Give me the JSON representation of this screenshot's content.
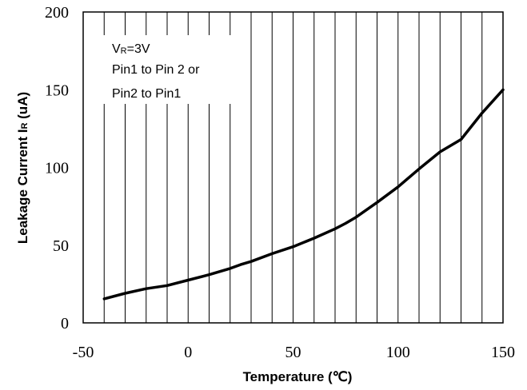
{
  "chart_data": {
    "type": "line",
    "xlabel_main": "Temperature (",
    "xlabel_unit": "℃",
    "xlabel_end": ")",
    "ylabel_main": "Leakage Current I",
    "ylabel_sub": "R",
    "ylabel_unit": " (uA)",
    "xlim": [
      -50,
      150
    ],
    "ylim": [
      0,
      200
    ],
    "x_ticks": [
      -50,
      0,
      50,
      100,
      150
    ],
    "y_ticks": [
      0,
      50,
      100,
      150,
      200
    ],
    "x_minor_step": 10,
    "grid": "vertical",
    "annotation": {
      "line1_v": "V",
      "line1_sub": "R",
      "line1_rest": "=3V",
      "line2": "Pin1 to Pin 2 or",
      "line3": "Pin2 to Pin1"
    },
    "series": [
      {
        "x": [
          -40,
          -30,
          -20,
          -10,
          0,
          10,
          20,
          25,
          30,
          40,
          50,
          60,
          70,
          75,
          80,
          90,
          100,
          110,
          120,
          130,
          140,
          150
        ],
        "y": [
          15.5,
          19,
          22,
          24,
          27.5,
          31,
          35,
          37.5,
          39.5,
          44.5,
          49,
          54.5,
          60.5,
          64,
          68,
          77.5,
          87.5,
          99,
          110,
          118,
          135,
          150
        ]
      }
    ]
  }
}
